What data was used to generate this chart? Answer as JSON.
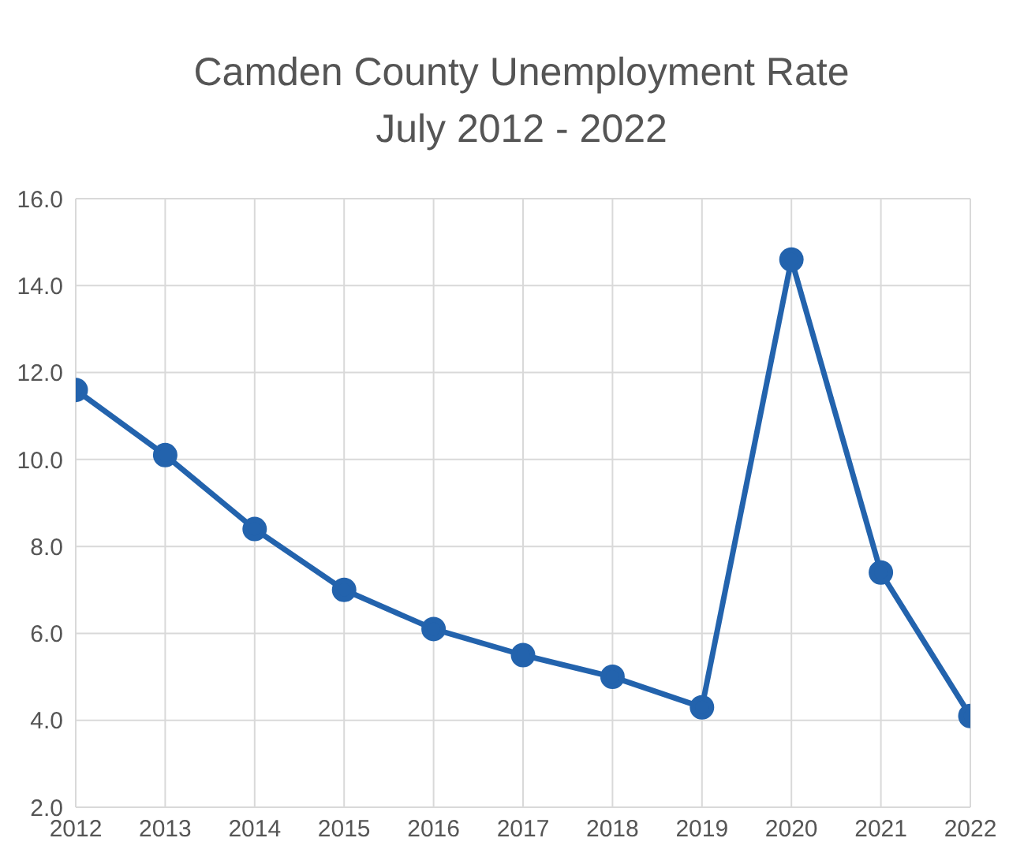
{
  "chart_data": {
    "type": "line",
    "title": "Camden County Unemployment Rate",
    "subtitle": "July 2012 - 2022",
    "categories": [
      "2012",
      "2013",
      "2014",
      "2015",
      "2016",
      "2017",
      "2018",
      "2019",
      "2020",
      "2021",
      "2022"
    ],
    "series": [
      {
        "color": "#2363ad",
        "values": [
          11.6,
          10.1,
          8.4,
          7.0,
          6.1,
          5.5,
          5.0,
          4.3,
          14.6,
          7.4,
          4.1
        ]
      }
    ],
    "ylim": [
      2,
      16
    ],
    "yticks": [
      {
        "value": 2,
        "label": "2.0"
      },
      {
        "value": 4,
        "label": "4.0"
      },
      {
        "value": 6,
        "label": "6.0"
      },
      {
        "value": 8,
        "label": "8.0"
      },
      {
        "value": 10,
        "label": "10.0"
      },
      {
        "value": 12,
        "label": "12.0"
      },
      {
        "value": 14,
        "label": "14.0"
      },
      {
        "value": 16,
        "label": "16.0"
      }
    ],
    "grid": true,
    "legend": false,
    "marker": "circle",
    "line_style": "solid"
  }
}
